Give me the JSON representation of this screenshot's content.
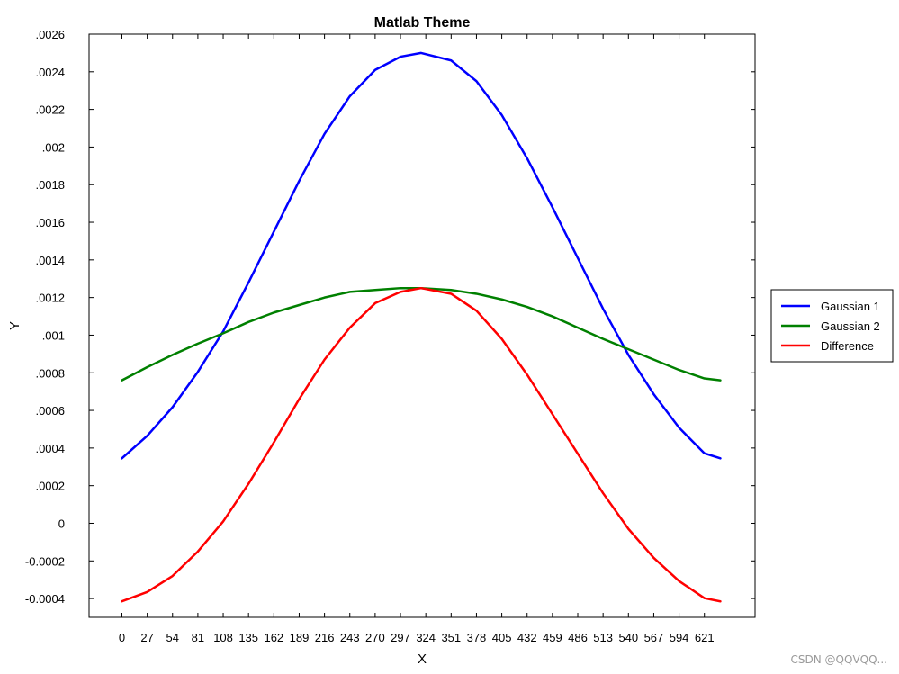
{
  "chart_data": {
    "type": "line",
    "title": "Matlab Theme",
    "xlabel": "X",
    "ylabel": "Y",
    "xlim": [
      -35,
      675
    ],
    "ylim": [
      -0.0005,
      0.0026
    ],
    "x_ticks": [
      "0",
      "27",
      "54",
      "81",
      "108",
      "135",
      "162",
      "189",
      "216",
      "243",
      "270",
      "297",
      "324",
      "351",
      "378",
      "405",
      "432",
      "459",
      "486",
      "513",
      "540",
      "567",
      "594",
      "621"
    ],
    "y_ticks": [
      ".0026",
      ".0024",
      ".0022",
      ".002",
      ".0018",
      ".0016",
      ".0014",
      ".0012",
      ".001",
      ".0008",
      ".0006",
      ".0004",
      ".0002",
      "0",
      "-0.0002",
      "-0.0004"
    ],
    "grid": false,
    "legend_position": "right",
    "series": [
      {
        "name": "Gaussian 1",
        "color": "#0000ff",
        "x": [
          0,
          27,
          54,
          81,
          108,
          135,
          162,
          189,
          216,
          243,
          270,
          297,
          319,
          351,
          378,
          405,
          432,
          459,
          486,
          513,
          540,
          567,
          594,
          621,
          638
        ],
        "values": [
          0.000345,
          0.000465,
          0.000617,
          0.000805,
          0.00102,
          0.00128,
          0.00155,
          0.00182,
          0.00207,
          0.00227,
          0.00241,
          0.00248,
          0.0025,
          0.00246,
          0.00235,
          0.00217,
          0.00194,
          0.00168,
          0.00141,
          0.00114,
          0.000895,
          0.000686,
          0.000508,
          0.000372,
          0.000345
        ]
      },
      {
        "name": "Gaussian 2",
        "color": "#008000",
        "x": [
          0,
          27,
          54,
          81,
          108,
          135,
          162,
          189,
          216,
          243,
          270,
          297,
          319,
          351,
          378,
          405,
          432,
          459,
          486,
          513,
          540,
          567,
          594,
          621,
          638
        ],
        "values": [
          0.00076,
          0.00083,
          0.000895,
          0.000955,
          0.00101,
          0.00107,
          0.00112,
          0.00116,
          0.0012,
          0.00123,
          0.00124,
          0.00125,
          0.00125,
          0.00124,
          0.00122,
          0.00119,
          0.00115,
          0.0011,
          0.00104,
          0.00098,
          0.000925,
          0.00087,
          0.000815,
          0.00077,
          0.00076
        ]
      },
      {
        "name": "Difference",
        "color": "#ff0000",
        "x": [
          0,
          27,
          54,
          81,
          108,
          135,
          162,
          189,
          216,
          243,
          270,
          297,
          319,
          351,
          378,
          405,
          432,
          459,
          486,
          513,
          540,
          567,
          594,
          621,
          638
        ],
        "values": [
          -0.000415,
          -0.000365,
          -0.00028,
          -0.00015,
          1e-05,
          0.00021,
          0.00043,
          0.00066,
          0.00087,
          0.00104,
          0.00117,
          0.00123,
          0.00125,
          0.00122,
          0.00113,
          0.00098,
          0.00079,
          0.00058,
          0.00037,
          0.00016,
          -3e-05,
          -0.000184,
          -0.000307,
          -0.000398,
          -0.000415
        ]
      }
    ]
  },
  "watermark": {
    "text": "CSDN @QQVQQ..."
  }
}
